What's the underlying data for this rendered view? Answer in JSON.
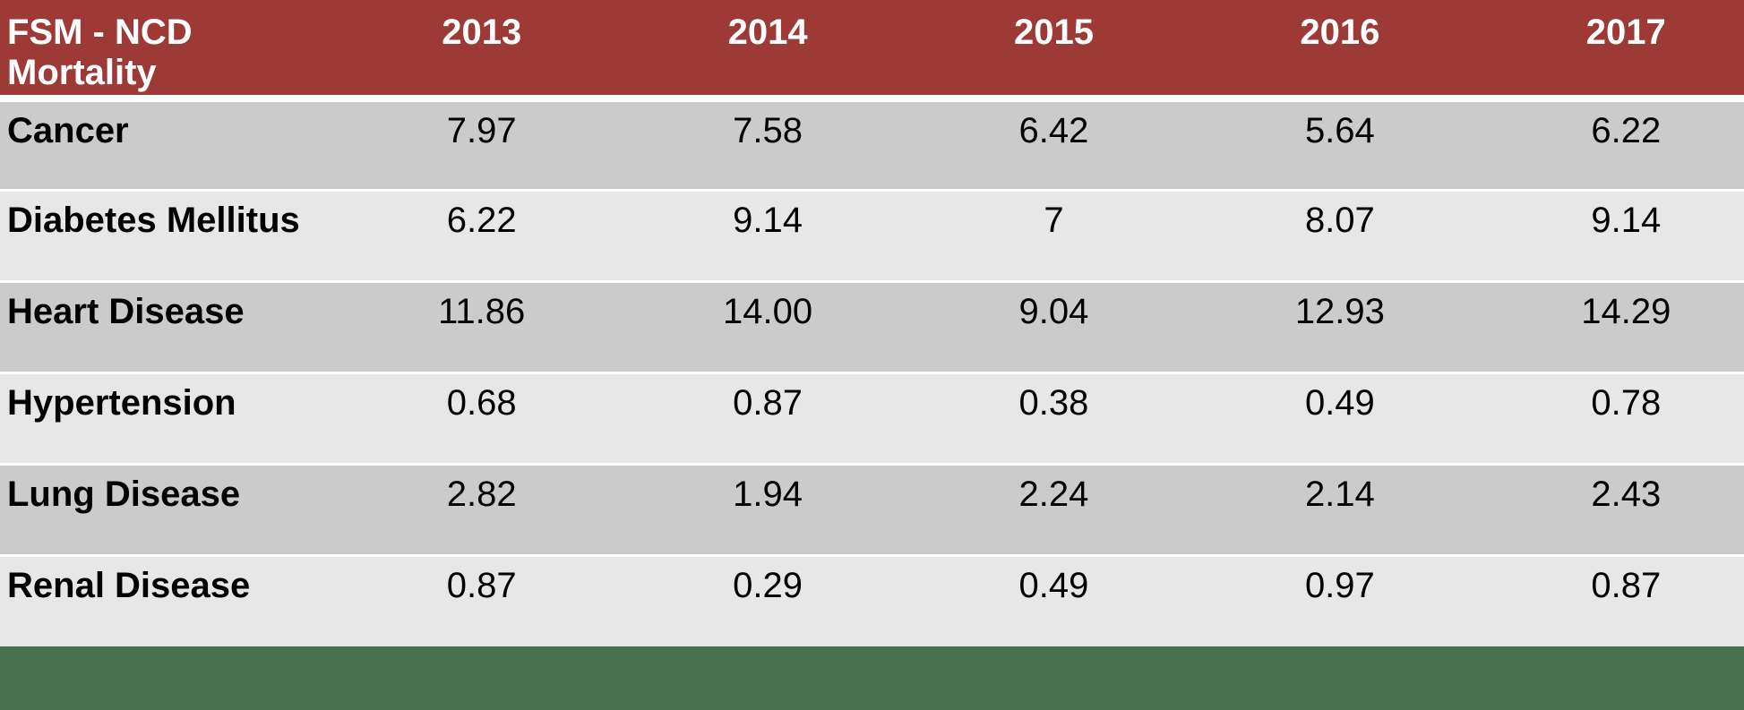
{
  "chart_data": {
    "type": "table",
    "title": "FSM - NCD Mortality",
    "columns": [
      "2013",
      "2014",
      "2015",
      "2016",
      "2017"
    ],
    "rows": [
      {
        "label": "Cancer",
        "values": [
          7.97,
          7.58,
          6.42,
          5.64,
          6.22
        ],
        "display": [
          "7.97",
          "7.58",
          "6.42",
          "5.64",
          "6.22"
        ]
      },
      {
        "label": "Diabetes Mellitus",
        "values": [
          6.22,
          9.14,
          7,
          8.07,
          9.14
        ],
        "display": [
          "6.22",
          "9.14",
          "7",
          "8.07",
          "9.14"
        ]
      },
      {
        "label": "Heart Disease",
        "values": [
          11.86,
          14.0,
          9.04,
          12.93,
          14.29
        ],
        "display": [
          "11.86",
          "14.00",
          "9.04",
          "12.93",
          "14.29"
        ]
      },
      {
        "label": "Hypertension",
        "values": [
          0.68,
          0.87,
          0.38,
          0.49,
          0.78
        ],
        "display": [
          "0.68",
          "0.87",
          "0.38",
          "0.49",
          "0.78"
        ]
      },
      {
        "label": "Lung Disease",
        "values": [
          2.82,
          1.94,
          2.24,
          2.14,
          2.43
        ],
        "display": [
          "2.82",
          "1.94",
          "2.24",
          "2.14",
          "2.43"
        ]
      },
      {
        "label": "Renal Disease",
        "values": [
          0.87,
          0.29,
          0.49,
          0.97,
          0.87
        ],
        "display": [
          "0.87",
          "0.29",
          "0.49",
          "0.97",
          "0.87"
        ]
      }
    ],
    "layout": {
      "header_row": true,
      "banded_rows": true,
      "first_column_bold": true,
      "data_alignment": "center"
    }
  },
  "colors": {
    "header_bg": "#9E3A36",
    "header_text": "#FFFFFF",
    "row_dark": "#CBCBCB",
    "row_light": "#E7E7E7",
    "body_text": "#000000",
    "footer_bg": "#47714B",
    "separator": "#FFFFFF"
  }
}
